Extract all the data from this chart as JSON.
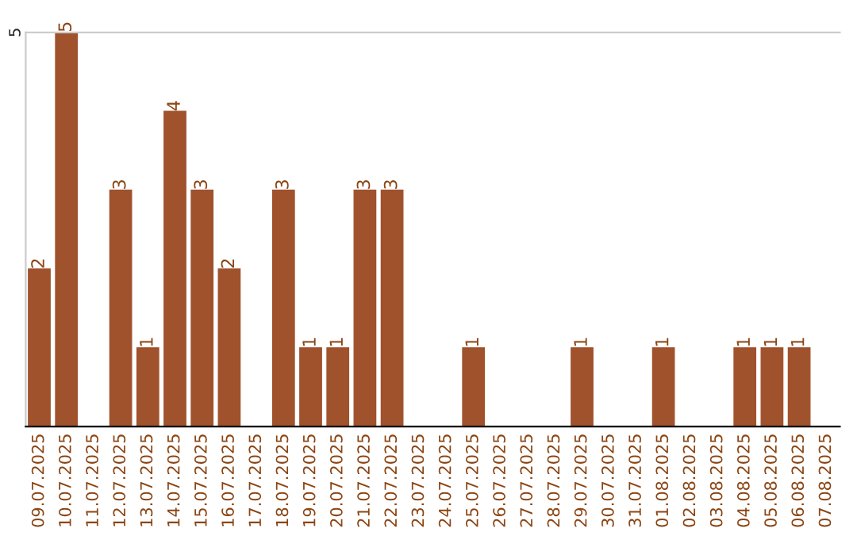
{
  "chart_data": {
    "type": "bar",
    "categories": [
      "09.07.2025",
      "10.07.2025",
      "11.07.2025",
      "12.07.2025",
      "13.07.2025",
      "14.07.2025",
      "15.07.2025",
      "16.07.2025",
      "17.07.2025",
      "18.07.2025",
      "19.07.2025",
      "20.07.2025",
      "21.07.2025",
      "22.07.2025",
      "23.07.2025",
      "24.07.2025",
      "25.07.2025",
      "26.07.2025",
      "27.07.2025",
      "28.07.2025",
      "29.07.2025",
      "30.07.2025",
      "31.07.2025",
      "01.08.2025",
      "02.08.2025",
      "03.08.2025",
      "04.08.2025",
      "05.08.2025",
      "06.08.2025",
      "07.08.2025"
    ],
    "values": [
      2,
      5,
      0,
      3,
      1,
      4,
      3,
      2,
      0,
      3,
      1,
      1,
      3,
      3,
      0,
      0,
      1,
      0,
      0,
      0,
      1,
      0,
      0,
      1,
      0,
      0,
      1,
      1,
      1,
      0
    ],
    "value_labels": [
      "2",
      "5",
      null,
      "3",
      "1",
      "4",
      "3",
      "2",
      null,
      "3",
      "1",
      "1",
      "3",
      "3",
      null,
      null,
      "1",
      null,
      null,
      null,
      "1",
      null,
      null,
      "1",
      null,
      null,
      "1",
      "1",
      "1",
      null
    ],
    "color": "#a0522d",
    "ylim": [
      0,
      5
    ],
    "yticks": [
      5
    ]
  }
}
